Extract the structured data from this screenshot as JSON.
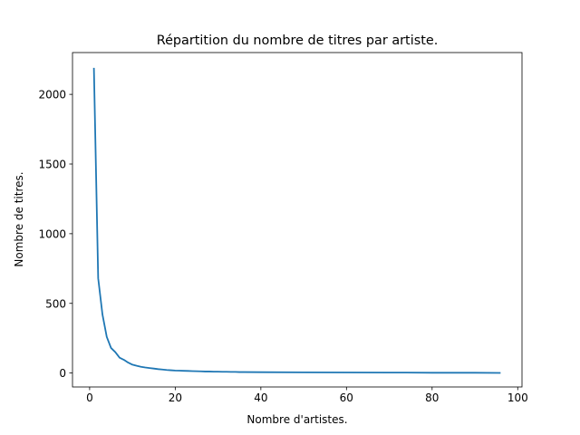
{
  "chart_data": {
    "type": "line",
    "title": "Répartition du nombre de titres par artiste.",
    "xlabel": "Nombre d'artistes.",
    "ylabel": "Nombre de titres.",
    "xlim": [
      -4,
      101
    ],
    "ylim": [
      -100,
      2300
    ],
    "xticks": [
      0,
      20,
      40,
      60,
      80,
      100
    ],
    "yticks": [
      0,
      500,
      1000,
      1500,
      2000
    ],
    "grid": false,
    "legend": "none",
    "series": [
      {
        "color": "#1f77b4",
        "x": [
          1,
          2,
          3,
          4,
          5,
          6,
          7,
          8,
          9,
          10,
          11,
          12,
          13,
          14,
          15,
          16,
          17,
          18,
          19,
          20,
          21,
          22,
          23,
          24,
          25,
          26,
          27,
          28,
          29,
          30,
          31,
          32,
          33,
          34,
          35,
          36,
          40,
          50,
          60,
          70,
          74,
          80,
          90,
          96
        ],
        "y": [
          2190,
          680,
          420,
          260,
          180,
          150,
          110,
          95,
          75,
          60,
          52,
          45,
          40,
          36,
          32,
          28,
          25,
          22,
          20,
          18,
          17,
          16,
          15,
          14,
          13,
          12,
          11,
          11,
          10,
          10,
          9,
          9,
          8,
          8,
          7,
          7,
          6,
          5,
          4,
          3,
          3,
          2,
          2,
          1
        ]
      }
    ]
  }
}
